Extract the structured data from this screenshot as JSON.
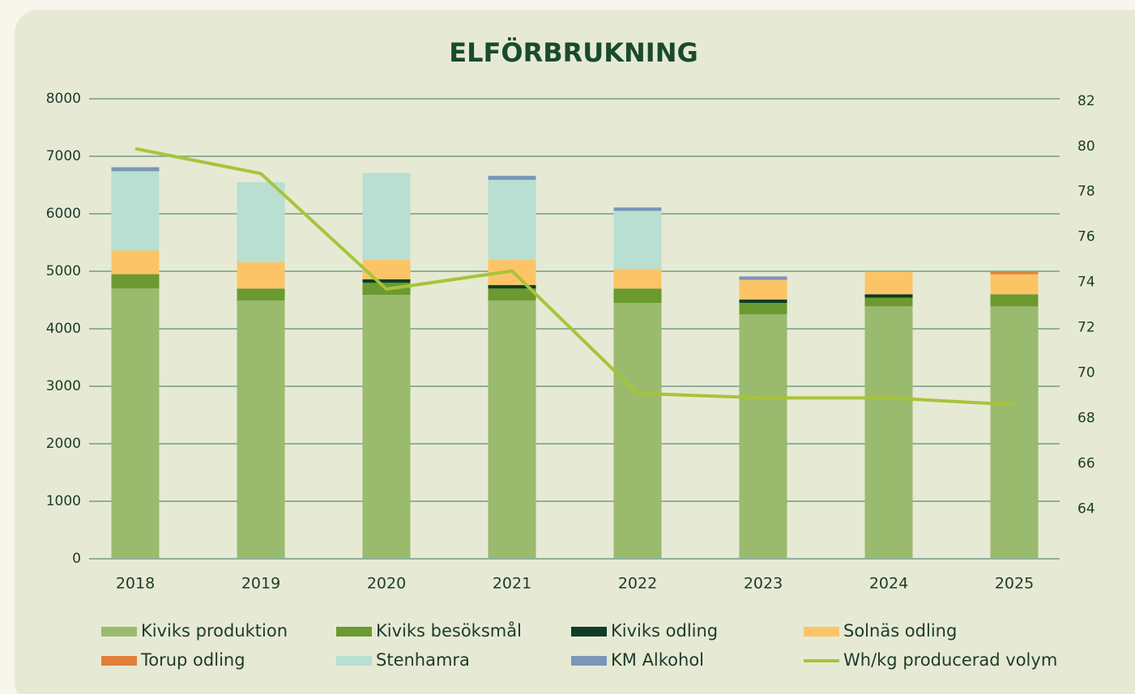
{
  "chart_data": {
    "type": "bar",
    "stacked": true,
    "title": "ELFÖRBRUKNING",
    "categories": [
      "2018",
      "2019",
      "2020",
      "2021",
      "2022",
      "2023",
      "2024",
      "2025"
    ],
    "series": [
      {
        "name": "Kiviks produktion",
        "color": "#9aba6e",
        "values": [
          4700,
          4490,
          4590,
          4490,
          4450,
          4250,
          4390,
          4390
        ]
      },
      {
        "name": "Kiviks besöksmål",
        "color": "#6a9a30",
        "values": [
          250,
          210,
          210,
          210,
          250,
          200,
          150,
          210
        ]
      },
      {
        "name": "Kiviks odling",
        "color": "#0e3d25",
        "values": [
          0,
          0,
          60,
          60,
          0,
          60,
          60,
          0
        ]
      },
      {
        "name": "Solnäs odling",
        "color": "#fcc466",
        "values": [
          410,
          460,
          340,
          440,
          340,
          340,
          390,
          350
        ]
      },
      {
        "name": "Torup odling",
        "color": "#e07f38",
        "values": [
          0,
          0,
          0,
          0,
          0,
          0,
          0,
          40
        ]
      },
      {
        "name": "Stenhamra",
        "color": "#b8dfd1",
        "values": [
          1380,
          1390,
          1510,
          1390,
          1010,
          0,
          0,
          0
        ]
      },
      {
        "name": "KM Alkohol",
        "color": "#7b96b8",
        "values": [
          70,
          0,
          0,
          70,
          60,
          60,
          0,
          0
        ]
      },
      {
        "name": "Wh/kg producerad volym",
        "color": "#a6c43a",
        "type": "line",
        "axis": "y2",
        "values": [
          79.9,
          78.8,
          73.7,
          74.5,
          69.1,
          68.9,
          68.9,
          68.6
        ]
      }
    ],
    "ylim": [
      0,
      8000
    ],
    "yticks": [
      0,
      1000,
      2000,
      3000,
      4000,
      5000,
      6000,
      7000,
      8000
    ],
    "y2lim": [
      61.8,
      82.1
    ],
    "y2ticks": [
      64,
      66,
      68,
      70,
      72,
      74,
      76,
      78,
      80,
      82
    ],
    "grid": true,
    "legend": "bottom"
  }
}
